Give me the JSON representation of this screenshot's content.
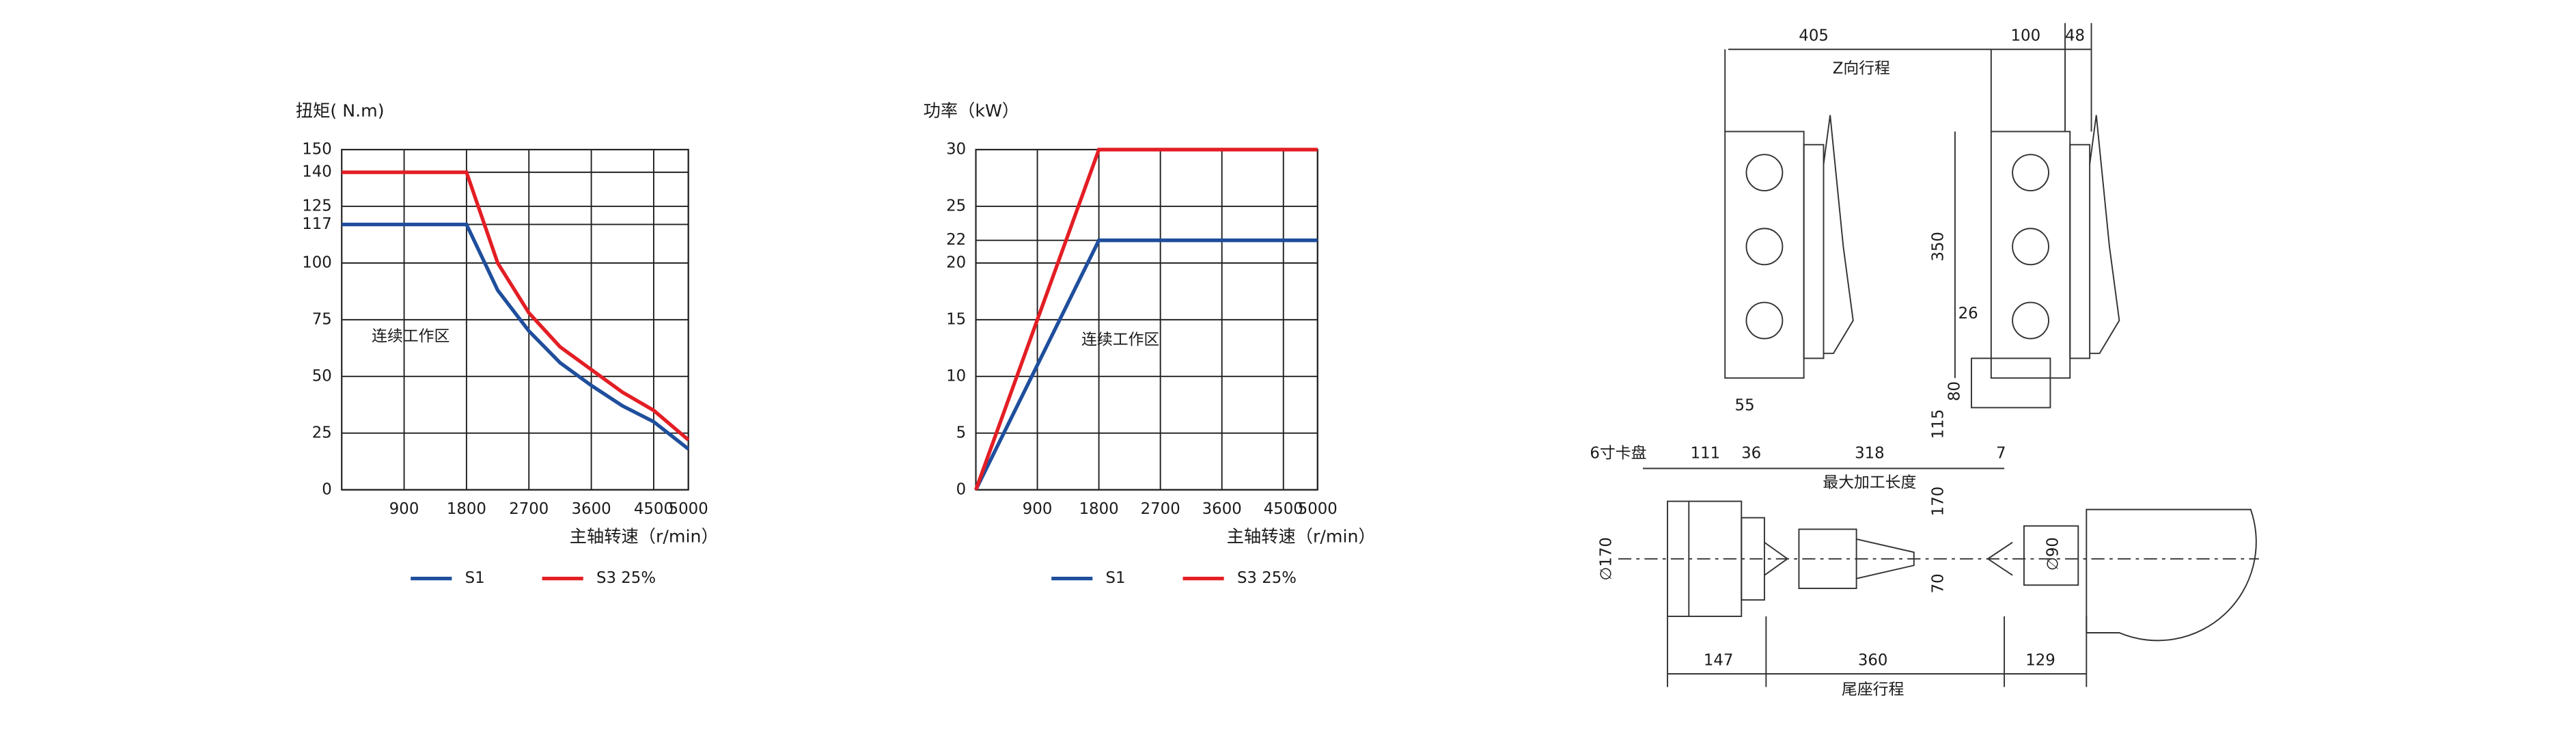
{
  "chart_data": [
    {
      "type": "line",
      "title": "扭矩( N.m)",
      "x_label": "主轴转速（r/min）",
      "annotation": "连续工作区",
      "x": [
        0,
        1800,
        2250,
        2700,
        3150,
        3600,
        4050,
        4500,
        5000
      ],
      "series": [
        {
          "name": "S1",
          "color": "#1f4e9c",
          "values": [
            117,
            117,
            88,
            70,
            56,
            46,
            37,
            30,
            18
          ]
        },
        {
          "name": "S3 25%",
          "color": "#e31e24",
          "values": [
            140,
            140,
            100,
            78,
            63,
            53,
            43,
            35,
            22
          ]
        }
      ],
      "xlim": [
        0,
        5000
      ],
      "xticks": [
        900,
        1800,
        2700,
        3600,
        4500,
        5000
      ],
      "ylim": [
        0,
        150
      ],
      "yticks": [
        0,
        25,
        50,
        75,
        100,
        117,
        125,
        140,
        150
      ],
      "grid": true
    },
    {
      "type": "line",
      "title": "功率（kW）",
      "x_label": "主轴转速（r/min）",
      "annotation": "连续工作区",
      "x": [
        0,
        1800,
        5000
      ],
      "series": [
        {
          "name": "S1",
          "color": "#1f4e9c",
          "values": [
            0,
            22,
            22
          ]
        },
        {
          "name": "S3 25%",
          "color": "#e31e24",
          "values": [
            0,
            30,
            30
          ]
        }
      ],
      "xlim": [
        0,
        5000
      ],
      "xticks": [
        900,
        1800,
        2700,
        3600,
        4500,
        5000
      ],
      "ylim": [
        0,
        30
      ],
      "yticks": [
        0,
        5,
        10,
        15,
        20,
        22,
        25,
        30
      ],
      "grid": true
    }
  ],
  "drawing": {
    "labels": [
      "405",
      "100",
      "48",
      "Z向行程",
      "350",
      "26",
      "80",
      "115",
      "7",
      "55",
      "6寸卡盘",
      "111",
      "36",
      "318",
      "最大加工长度",
      "170",
      "∅170",
      "∅90",
      "70",
      "147",
      "360",
      "129",
      "尾座行程"
    ]
  }
}
